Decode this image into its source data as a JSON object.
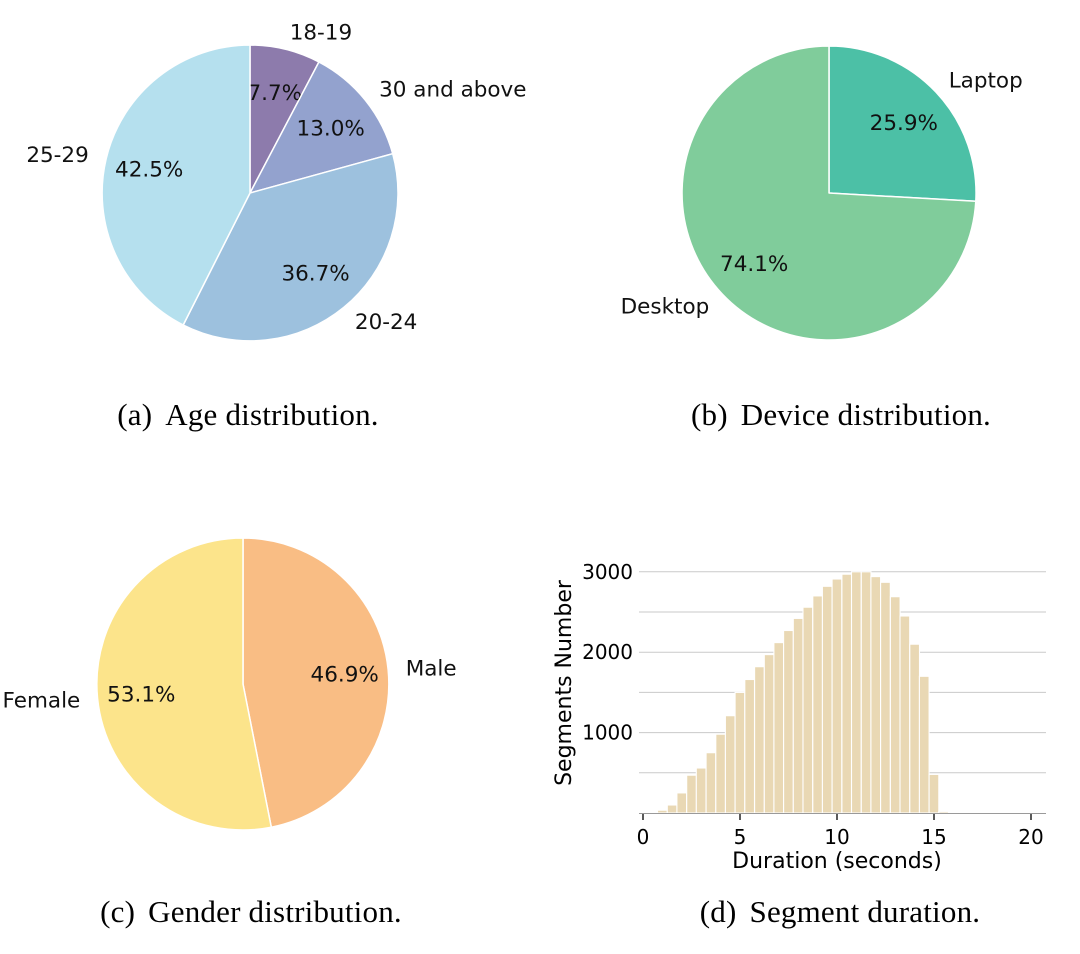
{
  "captions": [
    {
      "label": "(a)",
      "text": "Age distribution."
    },
    {
      "label": "(b)",
      "text": "Device distribution."
    },
    {
      "label": "(c)",
      "text": "Gender distribution."
    },
    {
      "label": "(d)",
      "text": "Segment duration."
    }
  ],
  "chart_data": [
    {
      "id": "age",
      "type": "pie",
      "title": "(a) Age distribution.",
      "labels": [
        "18-19",
        "30 and above",
        "20-24",
        "25-29"
      ],
      "values": [
        7.7,
        13.0,
        36.7,
        42.5
      ],
      "pct_labels": [
        "7.7%",
        "13.0%",
        "36.7%",
        "42.5%"
      ],
      "colors": [
        "#8d7bac",
        "#93a2ce",
        "#9dc1de",
        "#b5e0ee"
      ],
      "start_angle": "top",
      "direction": "clockwise",
      "label_distance": 1.12,
      "pct_distance": 0.7,
      "edge_color": "#ffffff",
      "legend_position": "none"
    },
    {
      "id": "device",
      "type": "pie",
      "title": "(b) Device distribution.",
      "labels": [
        "Laptop",
        "Desktop"
      ],
      "values": [
        25.9,
        74.1
      ],
      "pct_labels": [
        "25.9%",
        "74.1%"
      ],
      "colors": [
        "#4cc0a6",
        "#80cc9b"
      ],
      "start_angle": "top",
      "direction": "clockwise",
      "label_distance": 1.12,
      "pct_distance": 0.7,
      "edge_color": "#ffffff",
      "legend_position": "none"
    },
    {
      "id": "gender",
      "type": "pie",
      "title": "(c) Gender distribution.",
      "labels": [
        "Male",
        "Female"
      ],
      "values": [
        46.9,
        53.1
      ],
      "pct_labels": [
        "46.9%",
        "53.1%"
      ],
      "colors": [
        "#f9bd84",
        "#fce48b"
      ],
      "start_angle": "top",
      "direction": "clockwise",
      "label_distance": 1.12,
      "pct_distance": 0.7,
      "edge_color": "#ffffff",
      "legend_position": "none"
    },
    {
      "id": "duration",
      "type": "bar",
      "title": "(d) Segment duration.",
      "xlabel": "Duration (seconds)",
      "ylabel": "Segments Number",
      "bin_start": 0.75,
      "bin_width": 0.5,
      "counts": [
        35,
        100,
        250,
        470,
        560,
        750,
        980,
        1210,
        1500,
        1660,
        1820,
        1970,
        2120,
        2270,
        2420,
        2560,
        2700,
        2820,
        2910,
        2970,
        3000,
        3000,
        2940,
        2870,
        2690,
        2450,
        2100,
        1700,
        480,
        20
      ],
      "x_ticks": [
        0,
        5,
        10,
        15,
        20
      ],
      "y_tick_labels": [
        1000,
        2000,
        3000
      ],
      "gridline_values": [
        500,
        1000,
        1500,
        2000,
        2500,
        3000
      ],
      "xlim": [
        -0.6,
        21.1
      ],
      "ylim": [
        0,
        3200
      ],
      "grid": true,
      "bar_color": "#e9d8b4",
      "bar_edge_color": "#ffffff",
      "grid_color": "#cacaca",
      "spine_color": "#9a9a9a",
      "legend_position": "none"
    }
  ]
}
